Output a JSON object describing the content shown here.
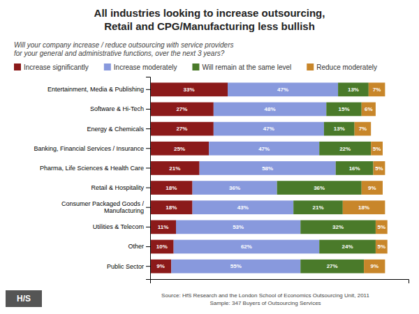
{
  "chart_data": {
    "type": "bar",
    "orientation": "horizontal",
    "stacked": true,
    "title": "All industries looking to increase outsourcing,\nRetail and CPG/Manufacturing less bullish",
    "subtitle": "Will your company increase / reduce outsourcing with service providers\nfor your general and administrative functions, over the next 3 years?",
    "categories": [
      "Entertainment, Media & Publishing",
      "Software & Hi-Tech",
      "Energy & Chemicals",
      "Banking, Financial Services / Insurance",
      "Pharma, Life Sciences & Health Care",
      "Retail & Hospitality",
      "Consumer Packaged Goods /\nManufacturing",
      "Utilities & Telecom",
      "Other",
      "Public Sector"
    ],
    "series": [
      {
        "name": "Increase significantly",
        "color": "#8B1A1A",
        "values": [
          33,
          27,
          27,
          25,
          21,
          18,
          18,
          11,
          10,
          9
        ],
        "value_labels": [
          "33%",
          "27%",
          "27%",
          "25%",
          "21%",
          "18%",
          "18%",
          "11%",
          "10%",
          "9%"
        ]
      },
      {
        "name": "Increase moderately",
        "color": "#8899DD",
        "values": [
          47,
          48,
          47,
          47,
          58,
          36,
          43,
          53,
          62,
          55
        ],
        "value_labels": [
          "47%",
          "48%",
          "47%",
          "47%",
          "58%",
          "36%",
          "43%",
          "53%",
          "62%",
          "55%"
        ]
      },
      {
        "name": "Will remain at the same level",
        "color": "#4A7A2A",
        "values": [
          13,
          15,
          13,
          22,
          16,
          36,
          21,
          32,
          24,
          27
        ],
        "value_labels": [
          "13%",
          "15%",
          "13%",
          "22%",
          "16%",
          "36%",
          "21%",
          "32%",
          "24%",
          "27%"
        ]
      },
      {
        "name": "Reduce moderately",
        "color": "#C8862A",
        "values": [
          7,
          6,
          7,
          5,
          5,
          9,
          18,
          5,
          5,
          9
        ],
        "value_labels": [
          "7%",
          "6%",
          "7%",
          "5%",
          "5%",
          "9%",
          "18%",
          "5%",
          "5%",
          "9%"
        ]
      }
    ],
    "xlim": [
      0,
      110
    ],
    "tick_labels": "y",
    "data_labels": true,
    "grid": false,
    "legend": "top",
    "annotations": [
      "Source:  HfS Research and the London School of Economics Outsourcing Unit, 2011\nSample: 347 Buyers of Outsourcing Services",
      "H/S"
    ]
  }
}
